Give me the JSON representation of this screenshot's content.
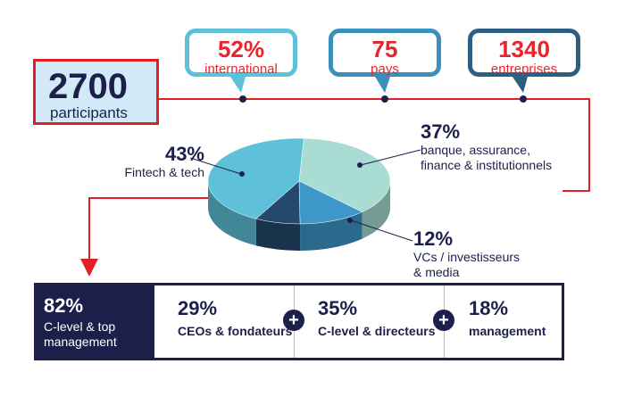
{
  "stats": [
    {
      "value": "52%",
      "label": "international",
      "color": "#5ec1d9"
    },
    {
      "value": "75",
      "label": "pays",
      "color": "#3a8fbd"
    },
    {
      "value": "1340",
      "label": "entreprises",
      "color": "#2c5f82"
    }
  ],
  "total": {
    "value": "2700",
    "label": "participants"
  },
  "chart_data": {
    "type": "pie",
    "title": "",
    "slices": [
      {
        "label": "Fintech & tech",
        "value": 43,
        "pct_text": "43%",
        "color": "#5ec1d9"
      },
      {
        "label": "banque, assurance, finance & institutionnels",
        "label_lines": [
          "banque, assurance,",
          "finance & institutionnels"
        ],
        "value": 37,
        "pct_text": "37%",
        "color": "#a9dcd3"
      },
      {
        "label": "VCs / investisseurs & media",
        "label_lines": [
          "VCs / investisseurs",
          "& media"
        ],
        "value": 12,
        "pct_text": "12%",
        "color": "#3d97c9"
      },
      {
        "label": "",
        "value": 8,
        "pct_text": "",
        "color": "#24496d"
      }
    ]
  },
  "management": {
    "main_value": "82%",
    "main_label": [
      "C-level & top",
      "management"
    ],
    "segments": [
      {
        "value": "29%",
        "label": "CEOs & fondateurs"
      },
      {
        "value": "35%",
        "label": "C-level & directeurs"
      },
      {
        "value": "18%",
        "label": "management"
      }
    ],
    "plus_symbol": "+"
  },
  "colors": {
    "accent_red": "#e8252a",
    "navy": "#1c1f4a"
  }
}
